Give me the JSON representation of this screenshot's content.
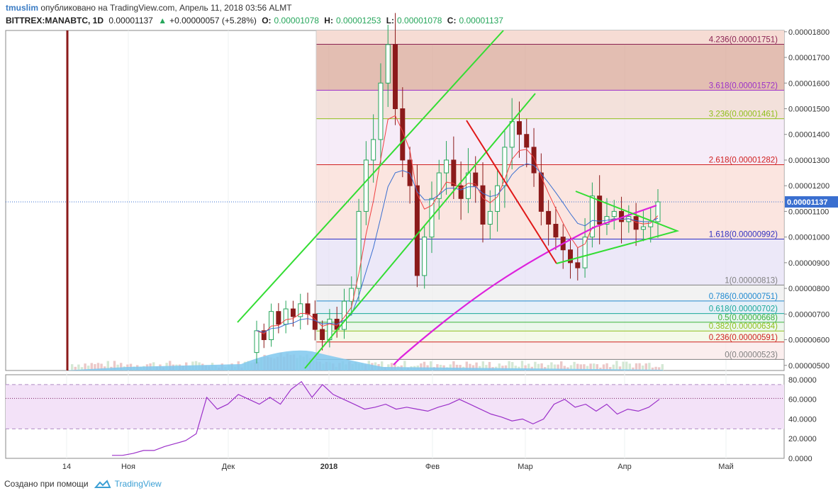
{
  "header": {
    "user": "tmuslim",
    "published": "опубликовано на TradingView.com, Апрель 11, 2018 03:56 ALMT",
    "symbol": "BITTREX:MANABTC, 1D",
    "last": "0.00001137",
    "change_arrow": "▲",
    "change": "+0.00000057 (+5.28%)",
    "o_label": "O:",
    "o": "0.00001078",
    "h_label": "H:",
    "h": "0.00001253",
    "l_label": "L:",
    "l": "0.00001078",
    "c_label": "C:",
    "c": "0.00001137"
  },
  "footer": {
    "created": "Создано при помощи",
    "brand": "TradingView",
    "logo_icon": "tradingview-cloud-icon"
  },
  "colors": {
    "up": "#26a65b",
    "down": "#8b1a1a",
    "channel": "#33dd33",
    "downtrend": "#e01818",
    "ma_long": "#dd22dd",
    "ma_fast": "#f04040",
    "ma_slow": "#3a6fd0",
    "volume": "#7fc8ee",
    "rsi": "#9b30c9",
    "user": "#3b7cc4",
    "brand": "#3b9fd4"
  },
  "chart_data": [
    {
      "type": "candlestick",
      "title": "BITTREX:MANABTC, 1D",
      "ylim": [
        4.8e-06,
        1.805e-05
      ],
      "y_ticks": [
        "0.00001800",
        "0.00001700",
        "0.00001600",
        "0.00001500",
        "0.00001400",
        "0.00001300",
        "0.00001200",
        "0.00001100",
        "0.00001000",
        "0.00000900",
        "0.00000800",
        "0.00000700",
        "0.00000600",
        "0.00000500"
      ],
      "x_ticks": [
        "14",
        "Ноя",
        "Дек",
        "2018",
        "Фев",
        "Мар",
        "Апр",
        "Май"
      ],
      "current_price_label": "0.00001137",
      "fibonacci_levels": [
        {
          "label": "4.236(0.00001751)",
          "value": 1.751e-05,
          "color": "#8b2252"
        },
        {
          "label": "3.618(0.00001572)",
          "value": 1.572e-05,
          "color": "#9b30c9"
        },
        {
          "label": "3.236(0.00001461)",
          "value": 1.461e-05,
          "color": "#8fbf1a"
        },
        {
          "label": "2.618(0.00001282)",
          "value": 1.282e-05,
          "color": "#d02020"
        },
        {
          "label": "1.618(0.00000992)",
          "value": 9.92e-06,
          "color": "#3030c0"
        },
        {
          "label": "1(0.00000813)",
          "value": 8.13e-06,
          "color": "#808080"
        },
        {
          "label": "0.786(0.00000751)",
          "value": 7.51e-06,
          "color": "#1e88d0"
        },
        {
          "label": "0.618(0.00000702)",
          "value": 7.02e-06,
          "color": "#19a89a"
        },
        {
          "label": "0.5(0.00000668)",
          "value": 6.68e-06,
          "color": "#3bb33b"
        },
        {
          "label": "0.382(0.00000634)",
          "value": 6.34e-06,
          "color": "#8fbf1a"
        },
        {
          "label": "0.236(0.00000591)",
          "value": 5.91e-06,
          "color": "#d02020"
        },
        {
          "label": "0(0.00000523)",
          "value": 5.23e-06,
          "color": "#808080"
        }
      ],
      "candles_close_approx": [
        6.35e-06,
        6e-06,
        7.1e-06,
        6.6e-06,
        7.2e-06,
        6.9e-06,
        7.4e-06,
        7e-06,
        6.4e-06,
        6e-06,
        6.8e-06,
        6.4e-06,
        7.5e-06,
        8e-06,
        1.1e-05,
        1.3e-05,
        1.38e-05,
        1.6e-05,
        1.75e-05,
        1.5e-05,
        1.3e-05,
        1.2e-05,
        8.5e-06,
        1e-05,
        1.15e-05,
        1.25e-05,
        1.3e-05,
        1.2e-05,
        1.15e-05,
        1.25e-05,
        1.2e-05,
        1.05e-05,
        1.1e-05,
        1.2e-05,
        1.35e-05,
        1.45e-05,
        1.4e-05,
        1.35e-05,
        1.25e-05,
        1.1e-05,
        1.05e-05,
        1e-05,
        9.5e-06,
        9e-06,
        8.8e-06,
        1e-05,
        1.16e-05,
        1.05e-05,
        1.08e-05,
        1.1e-05,
        1.06e-05,
        1.08e-05,
        1.03e-05,
        1.04e-05,
        1.06e-05,
        1.137e-05
      ]
    },
    {
      "type": "line",
      "title": "RSI",
      "ylim": [
        0,
        85
      ],
      "y_ticks": [
        "80.0000",
        "60.0000",
        "40.0000",
        "20.0000",
        "0.0000"
      ],
      "bands": [
        30,
        61,
        75
      ],
      "values_approx": [
        3,
        3,
        5,
        8,
        8,
        12,
        15,
        18,
        25,
        62,
        50,
        55,
        65,
        60,
        55,
        62,
        55,
        70,
        78,
        62,
        75,
        65,
        60,
        55,
        50,
        52,
        55,
        50,
        52,
        50,
        48,
        52,
        55,
        60,
        55,
        50,
        45,
        42,
        38,
        40,
        35,
        40,
        55,
        60,
        52,
        55,
        48,
        55,
        45,
        50,
        48,
        52,
        60
      ]
    }
  ]
}
